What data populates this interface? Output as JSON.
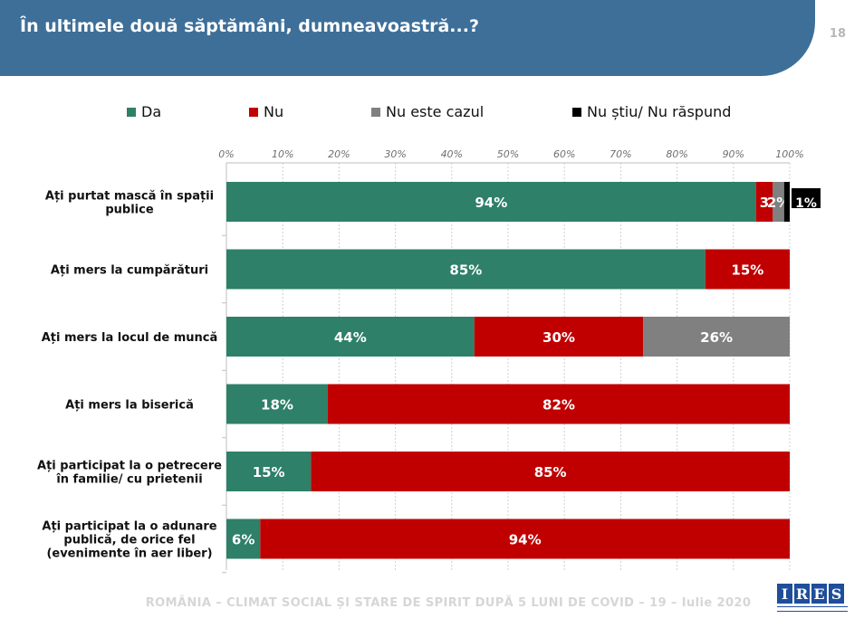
{
  "header": {
    "title": "În ultimele două săptămâni, dumneavoastră...?",
    "page_number": "18"
  },
  "footer": {
    "text": "ROMÂNIA – CLIMAT SOCIAL ȘI STARE DE SPIRIT DUPĂ 5 LUNI DE COVID – 19 – Iulie 2020",
    "logo_letters": [
      "I",
      "R",
      "E",
      "S"
    ]
  },
  "chart_data": {
    "type": "bar",
    "orientation": "horizontal",
    "stacked": true,
    "xlim": [
      0,
      100
    ],
    "xticks": [
      "0%",
      "10%",
      "20%",
      "30%",
      "40%",
      "50%",
      "60%",
      "70%",
      "80%",
      "90%",
      "100%"
    ],
    "legend_position": "top",
    "categories": [
      [
        "Ați purtat mască în spații",
        "publice"
      ],
      [
        "Ați mers la cumpărături"
      ],
      [
        "Ați mers la locul de muncă"
      ],
      [
        "Ați mers la biserică"
      ],
      [
        "Ați participat la o petrecere",
        "în familie/ cu prietenii"
      ],
      [
        "Ați participat la o adunare",
        "publică, de orice fel",
        "(evenimente în aer liber)"
      ]
    ],
    "series": [
      {
        "name": "Da",
        "color": "#2e8068",
        "values": [
          94,
          85,
          44,
          18,
          15,
          6
        ],
        "labels": [
          "94%",
          "85%",
          "44%",
          "18%",
          "15%",
          "6%"
        ]
      },
      {
        "name": "Nu",
        "color": "#c00000",
        "values": [
          3,
          15,
          30,
          82,
          85,
          94
        ],
        "labels": [
          "3",
          "15%",
          "30%",
          "82%",
          "85%",
          "94%"
        ]
      },
      {
        "name": "Nu este cazul",
        "color": "#808080",
        "values": [
          2,
          0,
          26,
          0,
          0,
          0
        ],
        "labels": [
          "2%",
          "",
          "26%",
          "",
          "",
          ""
        ]
      },
      {
        "name": "Nu știu/ Nu răspund",
        "color": "#000000",
        "values": [
          1,
          0,
          0,
          0,
          0,
          0
        ],
        "labels": [
          "1%",
          "",
          "",
          "",
          "",
          ""
        ]
      }
    ]
  }
}
